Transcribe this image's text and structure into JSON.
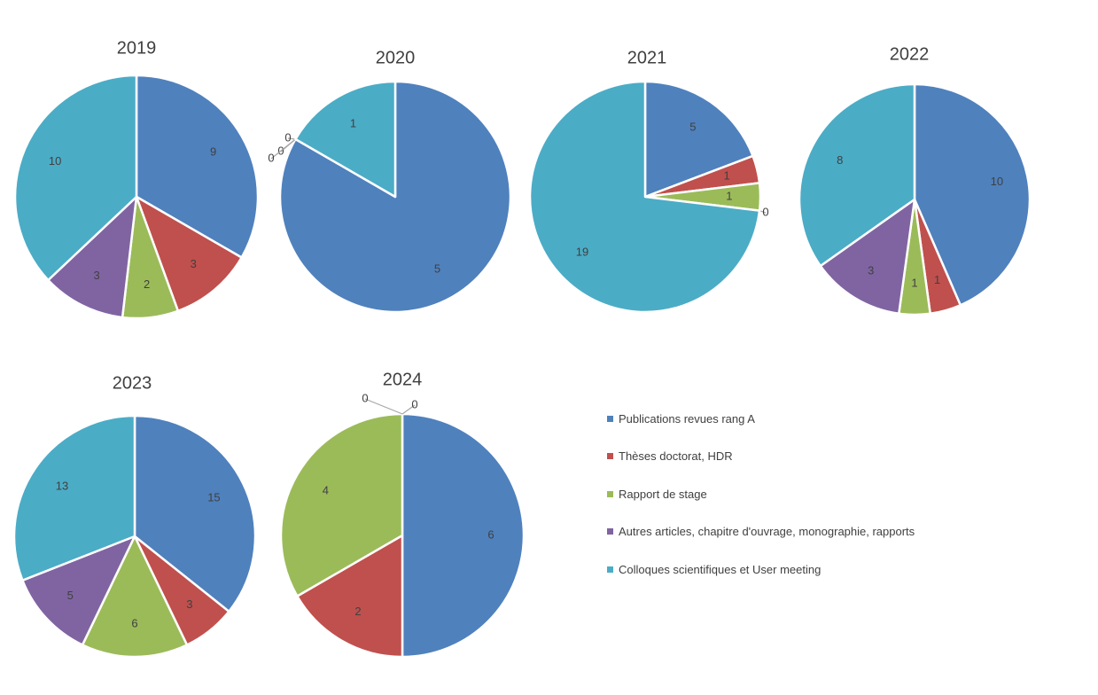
{
  "colors": [
    "#4F81BD",
    "#C0504D",
    "#9BBB59",
    "#8064A2",
    "#4BACC6"
  ],
  "chart_data": [
    {
      "type": "pie",
      "title": "2019",
      "categories": [
        "Publications revues rang A",
        "Thèses doctorat, HDR",
        "Rapport de stage",
        "Autres articles, chapitre d'ouvrage, monographie, rapports",
        "Colloques scientifiques et User meeting"
      ],
      "values": [
        9,
        3,
        2,
        3,
        10
      ]
    },
    {
      "type": "pie",
      "title": "2020",
      "categories": [
        "Publications revues rang A",
        "Thèses doctorat, HDR",
        "Rapport de stage",
        "Autres articles, chapitre d'ouvrage, monographie, rapports",
        "Colloques scientifiques et User meeting"
      ],
      "values": [
        5,
        0,
        0,
        0,
        1
      ]
    },
    {
      "type": "pie",
      "title": "2021",
      "categories": [
        "Publications revues rang A",
        "Thèses doctorat, HDR",
        "Rapport de stage",
        "Autres articles, chapitre d'ouvrage, monographie, rapports",
        "Colloques scientifiques et User meeting"
      ],
      "values": [
        5,
        1,
        1,
        0,
        19
      ]
    },
    {
      "type": "pie",
      "title": "2022",
      "categories": [
        "Publications revues rang A",
        "Thèses doctorat, HDR",
        "Rapport de stage",
        "Autres articles, chapitre d'ouvrage, monographie, rapports",
        "Colloques scientifiques et User meeting"
      ],
      "values": [
        10,
        1,
        1,
        3,
        8
      ]
    },
    {
      "type": "pie",
      "title": "2023",
      "categories": [
        "Publications revues rang A",
        "Thèses doctorat, HDR",
        "Rapport de stage",
        "Autres articles, chapitre d'ouvrage, monographie, rapports",
        "Colloques scientifiques et User meeting"
      ],
      "values": [
        15,
        3,
        6,
        5,
        13
      ]
    },
    {
      "type": "pie",
      "title": "2024",
      "categories": [
        "Publications revues rang A",
        "Thèses doctorat, HDR",
        "Rapport de stage",
        "Autres articles, chapitre d'ouvrage, monographie, rapports",
        "Colloques scientifiques et User meeting"
      ],
      "values": [
        6,
        2,
        4,
        0,
        0
      ]
    }
  ],
  "legend": {
    "position": "right",
    "items": [
      "Publications revues rang A",
      "Thèses doctorat, HDR",
      "Rapport de stage",
      "Autres articles, chapitre d'ouvrage, monographie, rapports",
      "Colloques scientifiques et User meeting"
    ]
  }
}
